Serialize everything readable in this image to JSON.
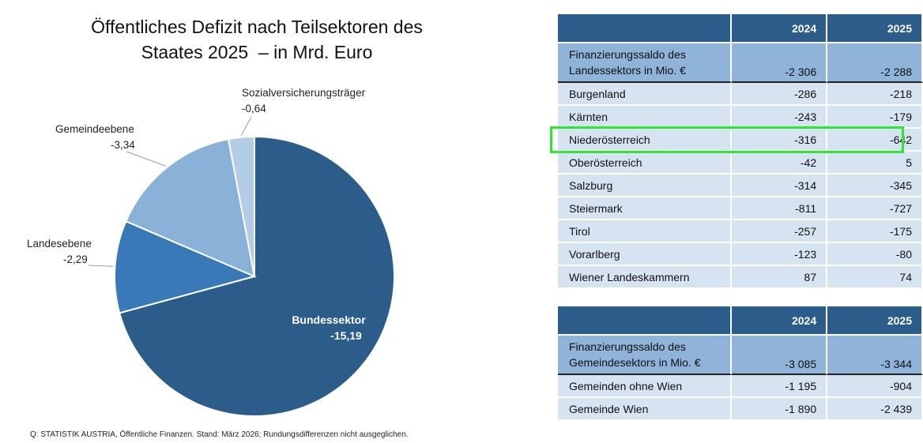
{
  "chart_data": {
    "type": "pie",
    "title": "Öffentliches Defizit nach Teilsektoren des Staates 2025  – in Mrd. Euro",
    "title_lines": [
      "Öffentliches Defizit nach Teilsektoren des",
      "Staates 2025  – in Mrd. Euro"
    ],
    "slices": [
      {
        "label": "Bundessektor",
        "value_label": "-15,19",
        "value": 15.19,
        "color": "#2b5c8a"
      },
      {
        "label": "Landesebene",
        "value_label": "-2,29",
        "value": 2.29,
        "color": "#3a79b8"
      },
      {
        "label": "Gemeindeebene",
        "value_label": "-3,34",
        "value": 3.34,
        "color": "#8ab1d8"
      },
      {
        "label": "Sozialversicherungsträger",
        "value_label": "-0,64",
        "value": 0.64,
        "color": "#b3cde6"
      }
    ],
    "start_angle_deg": 0,
    "direction": "clockwise"
  },
  "source": "Q: STATISTIK AUSTRIA, Öffentliche Finanzen. Stand: März 2026; Rundungsdifferenzen nicht ausgeglichen.",
  "table_states": {
    "header": [
      "",
      "2024",
      "2025"
    ],
    "summary": {
      "name": "Finanzierungssaldo des Landessektors in Mio. €",
      "v2024": "-2 306",
      "v2025": "-2 288"
    },
    "rows": [
      {
        "name": "Burgenland",
        "v2024": "-286",
        "v2025": "-218"
      },
      {
        "name": "Kärnten",
        "v2024": "-243",
        "v2025": "-179"
      },
      {
        "name": "Niederösterreich",
        "v2024": "-316",
        "v2025": "-642"
      },
      {
        "name": "Oberösterreich",
        "v2024": "-42",
        "v2025": "5"
      },
      {
        "name": "Salzburg",
        "v2024": "-314",
        "v2025": "-345"
      },
      {
        "name": "Steiermark",
        "v2024": "-811",
        "v2025": "-727"
      },
      {
        "name": "Tirol",
        "v2024": "-257",
        "v2025": "-175"
      },
      {
        "name": "Vorarlberg",
        "v2024": "-123",
        "v2025": "-80"
      },
      {
        "name": "Wiener Landeskammern",
        "v2024": "87",
        "v2025": "74"
      }
    ],
    "highlighted_row": "Niederösterreich",
    "highlight_color": "#2ee82e"
  },
  "table_municipalities": {
    "header": [
      "",
      "2024",
      "2025"
    ],
    "summary": {
      "name": "Finanzierungssaldo des Gemeindesektors in Mio. €",
      "v2024": "-3 085",
      "v2025": "-3 344"
    },
    "rows": [
      {
        "name": "Gemeinden ohne Wien",
        "v2024": "-1 195",
        "v2025": "-904"
      },
      {
        "name": "Gemeinde Wien",
        "v2024": "-1 890",
        "v2025": "-2 439"
      }
    ]
  }
}
